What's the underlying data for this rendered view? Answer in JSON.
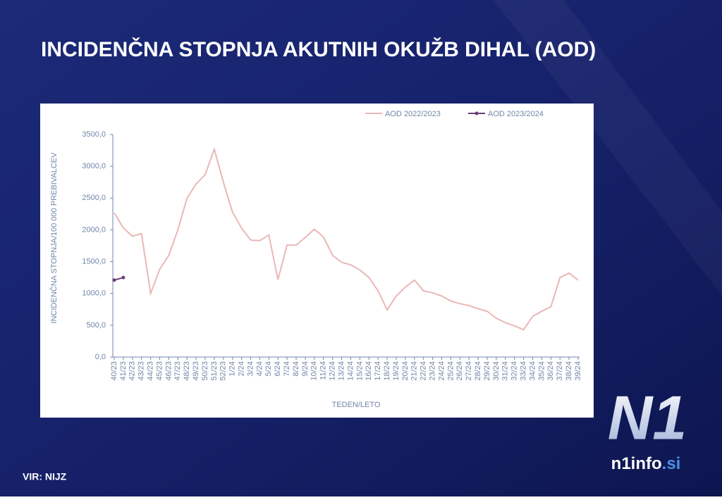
{
  "chart_data": {
    "type": "line",
    "title": "INCIDENČNA STOPNJA AKUTNIH OKUŽB DIHAL (AOD)",
    "ylabel": "INCIDENČNA  STOPNJA/100 000  PREBIVALCEV",
    "xlabel": "TEDEN/LETO",
    "source": "VIR: NIJZ",
    "categories": [
      "40/23",
      "41/23",
      "42/23",
      "43/23",
      "44/23",
      "45/23",
      "46/23",
      "47/23",
      "48/23",
      "49/23",
      "50/23",
      "51/23",
      "52/23",
      "1/24",
      "2/24",
      "3/24",
      "4/24",
      "5/24",
      "6/24",
      "7/24",
      "8/24",
      "9/24",
      "10/24",
      "11/24",
      "12/24",
      "13/24",
      "14/24",
      "15/24",
      "16/24",
      "17/24",
      "18/24",
      "19/24",
      "20/24",
      "21/24",
      "22/24",
      "23/24",
      "24/24",
      "25/24",
      "26/24",
      "27/24",
      "28/24",
      "29/24",
      "30/24",
      "31/24",
      "32/24",
      "33/24",
      "34/24",
      "35/24",
      "36/24",
      "37/24",
      "38/24",
      "39/24"
    ],
    "series": [
      {
        "name": "AOD 2022/2023",
        "color": "#e9b8b6",
        "values": [
          2270,
          2030,
          1900,
          1940,
          1000,
          1380,
          1600,
          2000,
          2500,
          2720,
          2870,
          3270,
          2750,
          2280,
          2030,
          1840,
          1830,
          1920,
          1220,
          1760,
          1760,
          1880,
          2010,
          1890,
          1600,
          1490,
          1450,
          1370,
          1250,
          1040,
          740,
          960,
          1100,
          1210,
          1040,
          1010,
          960,
          880,
          840,
          810,
          760,
          720,
          610,
          540,
          490,
          430,
          640,
          720,
          790,
          1250,
          1320,
          1210
        ]
      },
      {
        "name": "AOD 2023/2024",
        "color": "#6a3f78",
        "values": [
          1210,
          1250,
          null,
          null,
          null,
          null,
          null,
          null,
          null,
          null,
          null,
          null,
          null,
          null,
          null,
          null,
          null,
          null,
          null,
          null,
          null,
          null,
          null,
          null,
          null,
          null,
          null,
          null,
          null,
          null,
          null,
          null,
          null,
          null,
          null,
          null,
          null,
          null,
          null,
          null,
          null,
          null,
          null,
          null,
          null,
          null,
          null,
          null,
          null,
          null,
          null,
          null
        ]
      }
    ],
    "ylim": [
      0,
      3500
    ],
    "yticks": [
      {
        "value": 0,
        "label": "0,0"
      },
      {
        "value": 500,
        "label": "500,0"
      },
      {
        "value": 1000,
        "label": "1000,0"
      },
      {
        "value": 1500,
        "label": "1500,0"
      },
      {
        "value": 2000,
        "label": "2000,0"
      },
      {
        "value": 2500,
        "label": "2500,0"
      },
      {
        "value": 3000,
        "label": "3000,0"
      },
      {
        "value": 3500,
        "label": "3500,0"
      }
    ],
    "legend": "top"
  },
  "logo": {
    "mark": "N1",
    "site": "n1info",
    "domain": ".si"
  }
}
